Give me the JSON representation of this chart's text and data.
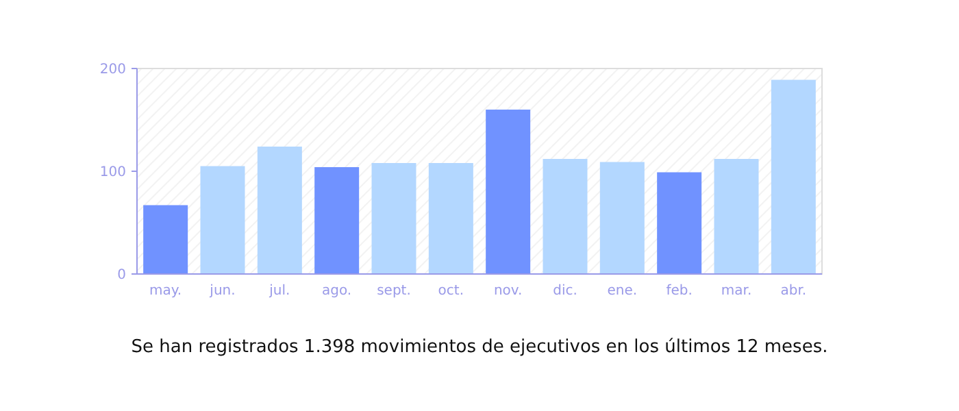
{
  "chart_data": {
    "type": "bar",
    "categories": [
      "may.",
      "jun.",
      "jul.",
      "ago.",
      "sept.",
      "oct.",
      "nov.",
      "dic.",
      "ene.",
      "feb.",
      "mar.",
      "abr."
    ],
    "values": [
      67,
      105,
      124,
      104,
      108,
      108,
      160,
      112,
      109,
      99,
      112,
      189
    ],
    "colors": [
      "#7092ff",
      "#b3d7ff",
      "#b3d7ff",
      "#7092ff",
      "#b3d7ff",
      "#b3d7ff",
      "#7092ff",
      "#b3d7ff",
      "#b3d7ff",
      "#7092ff",
      "#b3d7ff",
      "#b3d7ff"
    ],
    "ylim": [
      0,
      200
    ],
    "yticks": [
      0,
      100,
      200
    ],
    "grid": false,
    "annotations": [
      "Se han registrados 1.398 movimientos de ejecutivos en los últimos 12 meses."
    ]
  }
}
